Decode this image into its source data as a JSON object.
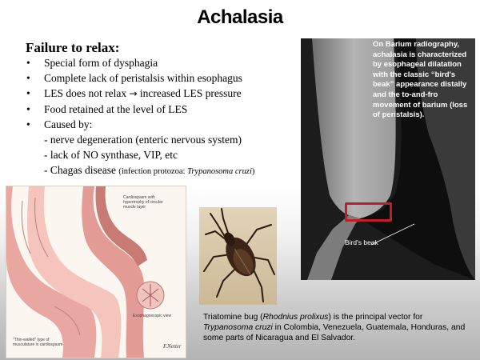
{
  "title": "Achalasia",
  "section_heading": "Failure  to relax:",
  "bullets": [
    {
      "pre": "Special form of dysphagia"
    },
    {
      "pre": "Complete lack of peristalsis  within  esophagus"
    },
    {
      "pre": "LES does not relax ",
      "arrow": "→",
      "post": " increased LES pressure"
    },
    {
      "pre": "Food retained at the level  of LES"
    },
    {
      "pre": "Caused by:"
    }
  ],
  "sub_items": [
    {
      "text": "- nerve degeneration  (enteric nervous system)"
    },
    {
      "text": "- lack of NO synthase, VIP, etc"
    },
    {
      "text": "- Chagas disease ",
      "small": "(infection protozoa: ",
      "small_em": "Trypanosoma cruzi",
      "small_end": ")"
    }
  ],
  "xray": {
    "caption": "On Barium radiography, achalasia is characterized by esophageal dilatation with the classic “bird's beak” appearance distally and the to-and-fro movement of barium (loss of peristalsis).",
    "beak_label": "Bird's beak"
  },
  "illustration": {
    "label_top": [
      "Cardiospasm with",
      "hypertrophy of circular",
      "muscle layer"
    ],
    "label_mid": [
      "Esophagoscopic view"
    ],
    "label_bottom": [
      "\"Thin-walled\" type of",
      "musculature in cardiospasm"
    ],
    "signature": "F.Netter"
  },
  "bug_caption": {
    "p1": "Triatomine bug (",
    "p1_em": "Rhodnius prolixus",
    "p2": ") is the principal vector for ",
    "p2_em": "Trypanosoma cruzi",
    "p3": "  in Colombia, Venezuela, Guatemala, Honduras, and some parts of Nicaragua and El Salvador."
  },
  "colors": {
    "highlight_box": "#c21d26",
    "xray_background": "#0e0e0e",
    "tissue_pink": "#e9a7a2"
  }
}
